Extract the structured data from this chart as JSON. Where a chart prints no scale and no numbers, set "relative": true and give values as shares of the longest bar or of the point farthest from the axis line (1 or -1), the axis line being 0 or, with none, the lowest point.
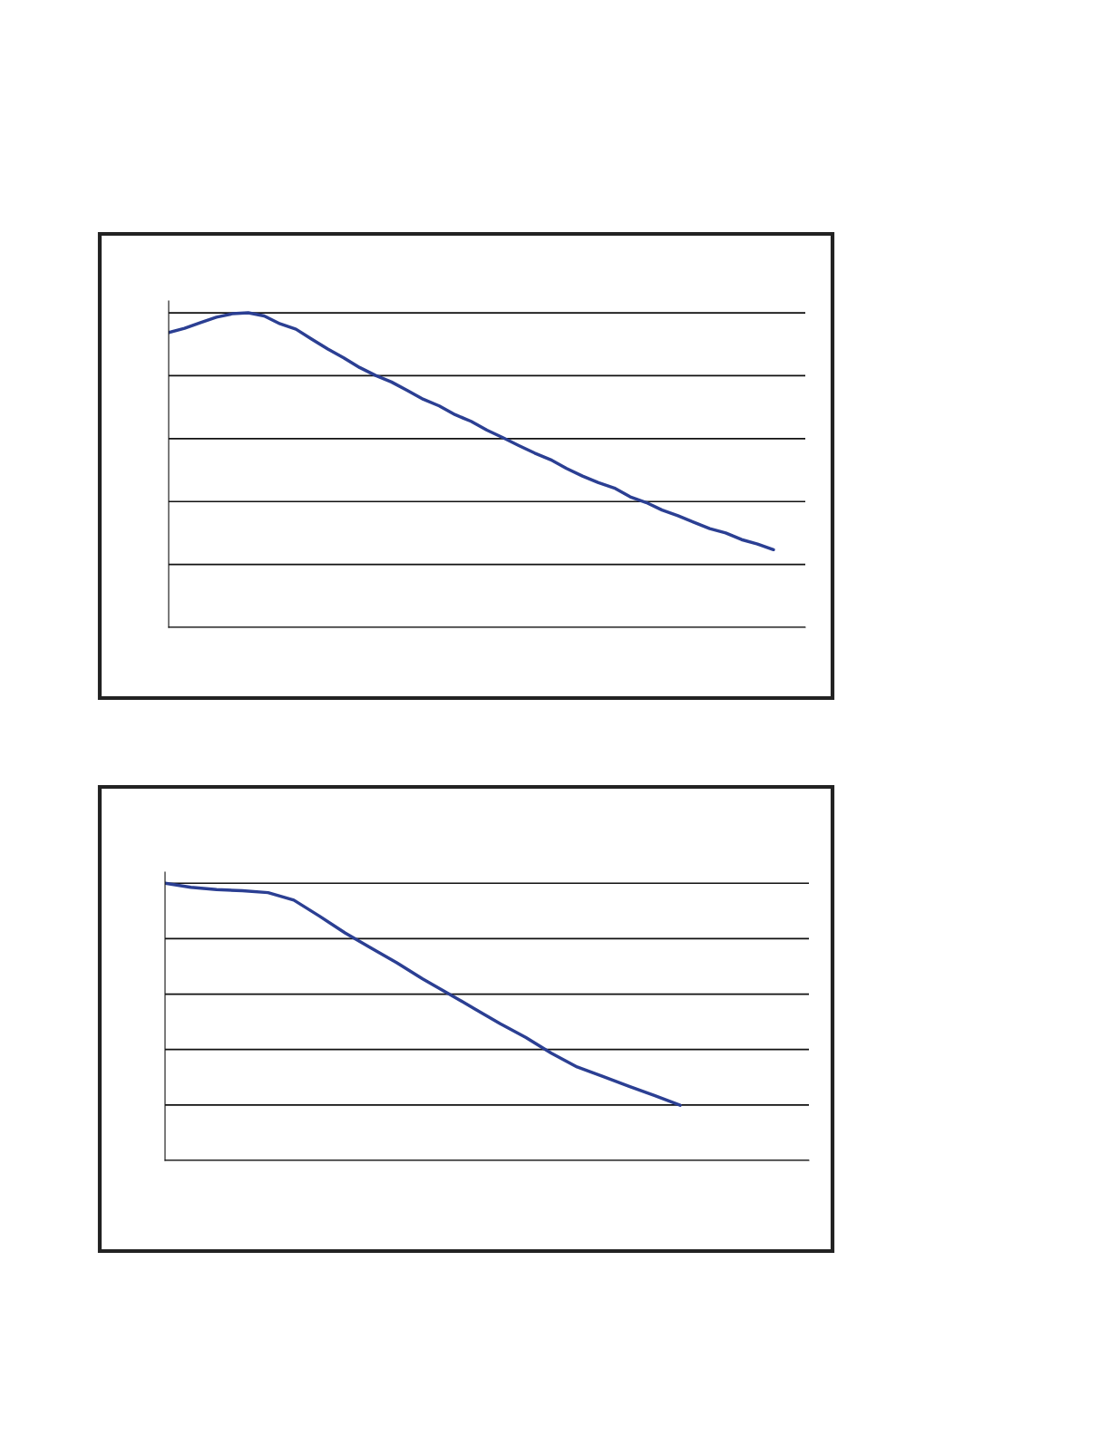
{
  "chart_data": [
    {
      "type": "line",
      "relative": true,
      "grid": "y",
      "categories": [
        null,
        null,
        null,
        null,
        null,
        null,
        null,
        null,
        null,
        null,
        null,
        null,
        null,
        null,
        null,
        null,
        null,
        null,
        null,
        null,
        null,
        null,
        null,
        null,
        null,
        null,
        null,
        null,
        null,
        null,
        null,
        null,
        null,
        null,
        null,
        null,
        null,
        null,
        null,
        null,
        null
      ],
      "series": [
        {
          "color": "#2b3f93",
          "values": [
            0.937,
            0.951,
            0.969,
            0.986,
            0.997,
            1,
            0.99,
            0.965,
            0.948,
            0.916,
            0.885,
            0.857,
            0.826,
            0.801,
            0.78,
            0.753,
            0.725,
            0.704,
            0.676,
            0.655,
            0.627,
            0.603,
            0.578,
            0.554,
            0.533,
            0.505,
            0.481,
            0.46,
            0.443,
            0.415,
            0.397,
            0.373,
            0.355,
            0.334,
            0.314,
            0.3,
            0.279,
            0.265,
            0.247,
            null,
            null
          ]
        }
      ]
    },
    {
      "type": "line",
      "relative": true,
      "grid": "y",
      "categories": [
        null,
        null,
        null,
        null,
        null,
        null,
        null,
        null,
        null,
        null,
        null,
        null,
        null,
        null,
        null,
        null,
        null,
        null,
        null,
        null,
        null,
        null,
        null,
        null,
        null,
        null
      ],
      "series": [
        {
          "color": "#2b3f93",
          "values": [
            1,
            0.985,
            0.977,
            0.973,
            0.966,
            0.939,
            0.881,
            0.82,
            0.766,
            0.713,
            0.655,
            0.602,
            0.548,
            0.494,
            0.444,
            0.387,
            0.337,
            0.303,
            0.268,
            0.234,
            0.199,
            null,
            null,
            null,
            null,
            null
          ]
        }
      ]
    }
  ]
}
